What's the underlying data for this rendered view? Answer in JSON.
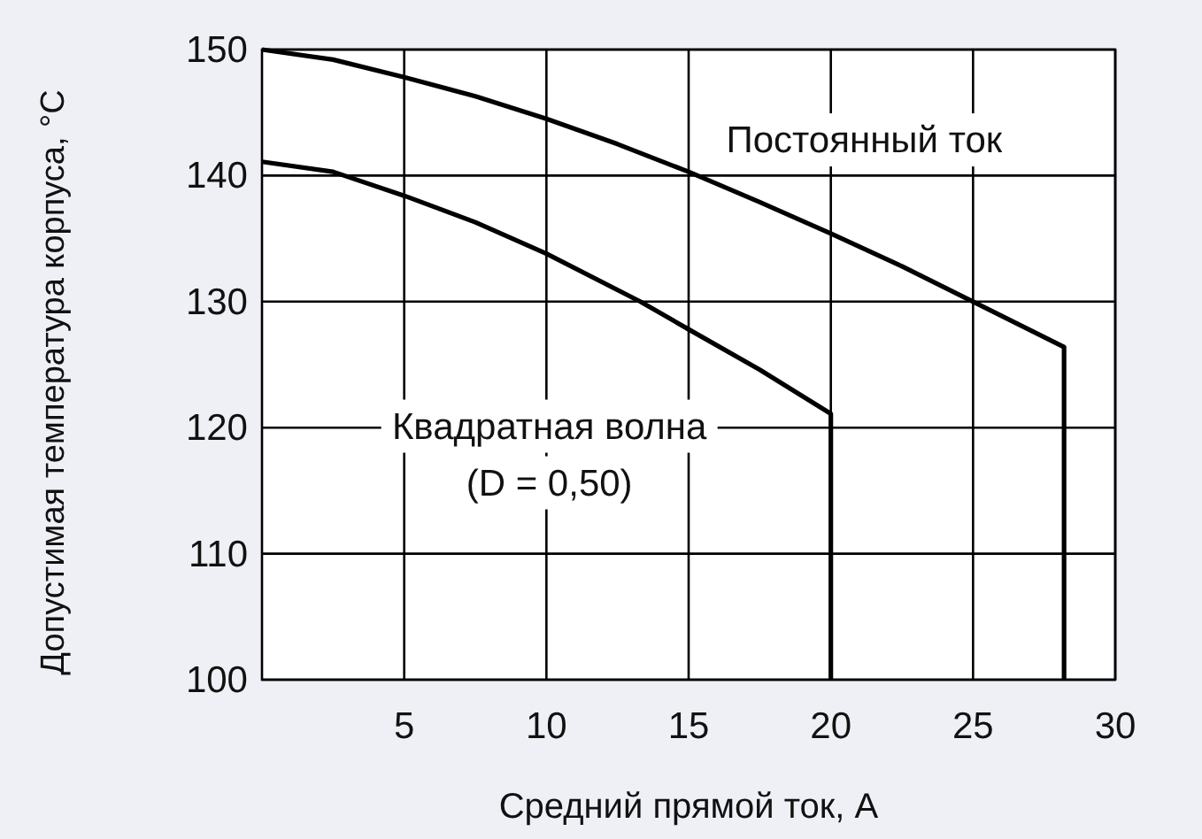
{
  "chart_data": {
    "type": "line",
    "xlabel": "Средний прямой ток, А",
    "ylabel": "Допустимая температура корпуса, °C",
    "xlim": [
      0,
      30
    ],
    "xticks": [
      5,
      10,
      15,
      20,
      25,
      30
    ],
    "ylim": [
      100,
      150
    ],
    "yticks": [
      100,
      110,
      120,
      130,
      140,
      150
    ],
    "grid": true,
    "series": [
      {
        "name": "Постоянный ток",
        "color": "#000000",
        "x": [
          0,
          2.5,
          5,
          7.5,
          10,
          12.5,
          15,
          17.5,
          20,
          22.5,
          25,
          28.2,
          28.2
        ],
        "values": [
          150,
          149.2,
          147.8,
          146.3,
          144.5,
          142.5,
          140.3,
          137.9,
          135.4,
          132.8,
          130,
          126.4,
          100
        ]
      },
      {
        "name": "Квадратная волна\n(D = 0,50)",
        "color": "#000000",
        "x": [
          0,
          2.5,
          5,
          7.5,
          10,
          13.3,
          15,
          17.5,
          20,
          20
        ],
        "values": [
          141.1,
          140.3,
          138.4,
          136.3,
          133.8,
          130,
          127.8,
          124.6,
          121.1,
          100
        ]
      }
    ]
  }
}
